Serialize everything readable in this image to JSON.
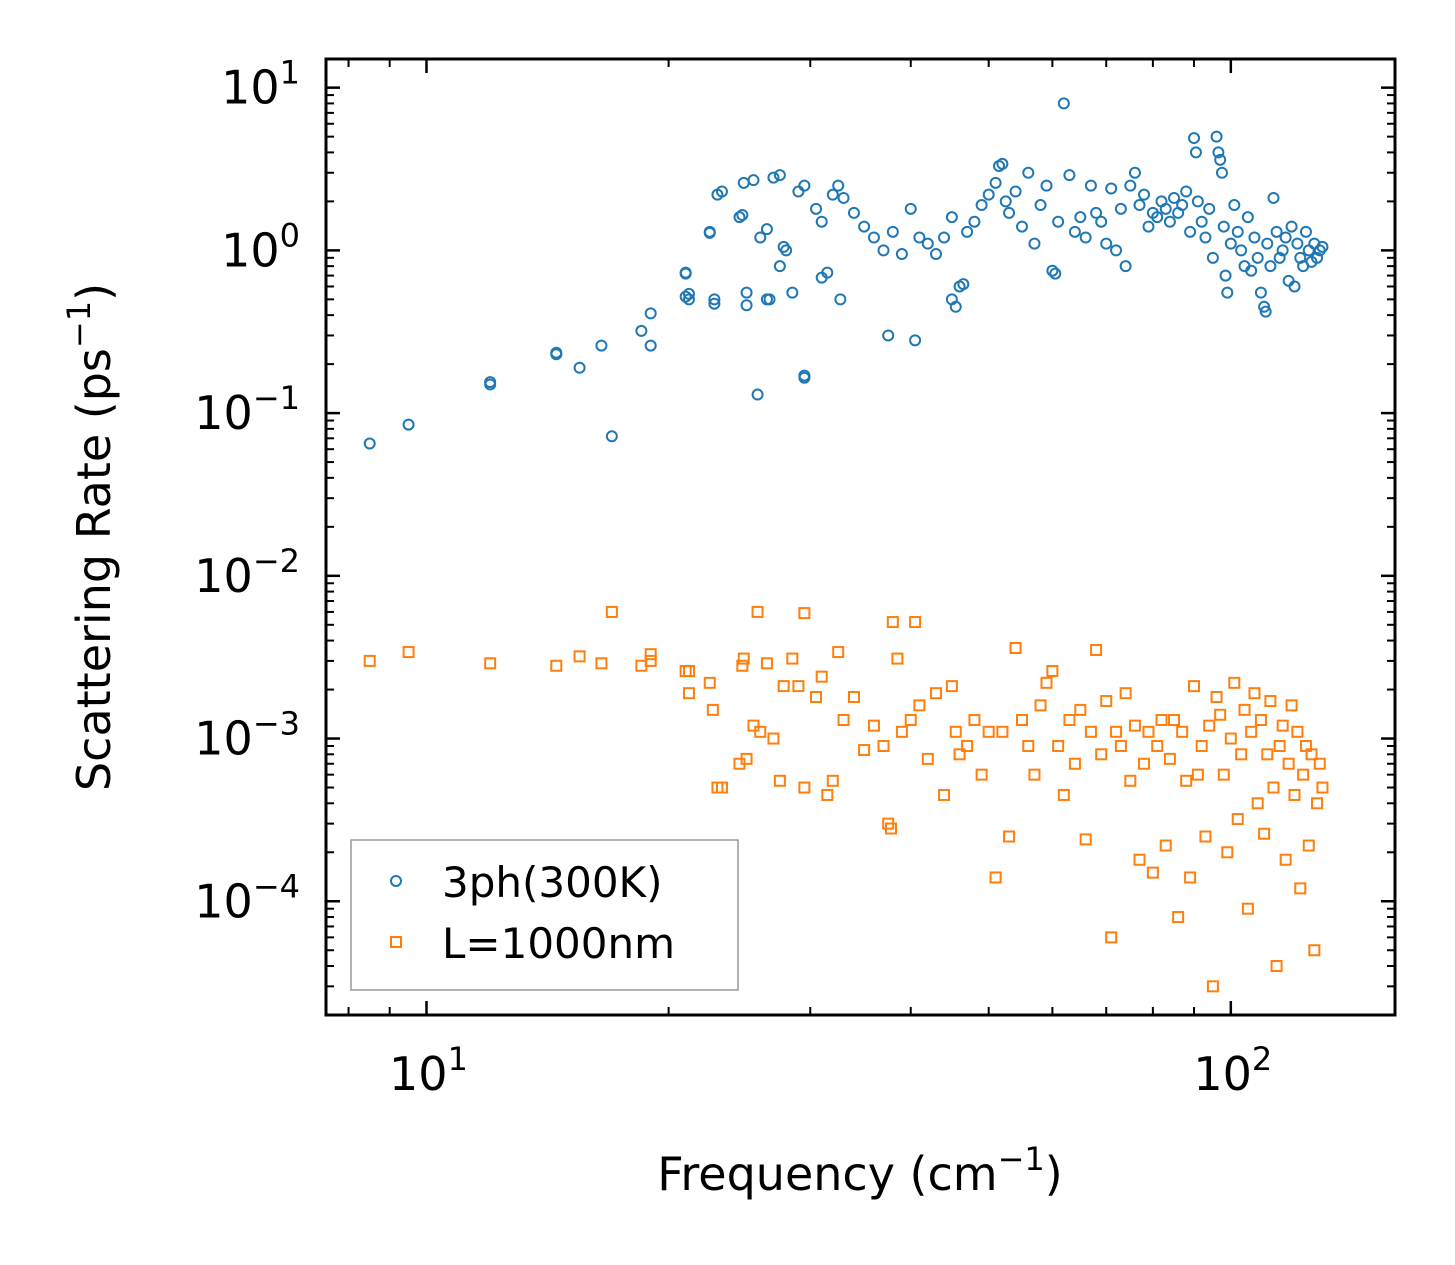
{
  "chart_data": {
    "type": "scatter",
    "xscale": "log",
    "yscale": "log",
    "xlim": [
      7.5,
      160
    ],
    "ylim": [
      2e-05,
      15
    ],
    "xlabel": "Frequency (cm",
    "xlabel_sup": "−1",
    "xlabel_end": ")",
    "ylabel": "Scattering Rate (ps",
    "ylabel_sup": "−1",
    "ylabel_end": ")",
    "x_ticks": [
      {
        "base": "10",
        "exp": "1",
        "value": 10
      },
      {
        "base": "10",
        "exp": "2",
        "value": 100
      }
    ],
    "y_ticks": [
      {
        "base": "10",
        "exp": "1",
        "value": 10
      },
      {
        "base": "10",
        "exp": "0",
        "value": 1
      },
      {
        "base": "10",
        "exp": "−1",
        "value": 0.1
      },
      {
        "base": "10",
        "exp": "−2",
        "value": 0.01
      },
      {
        "base": "10",
        "exp": "−3",
        "value": 0.001
      },
      {
        "base": "10",
        "exp": "−4",
        "value": 0.0001
      }
    ],
    "legend_position": "lower-left",
    "series": [
      {
        "name": "3ph(300K)",
        "marker": "circle",
        "color": "#1f77b4",
        "points": [
          [
            8.5,
            0.065
          ],
          [
            9.5,
            0.085
          ],
          [
            12,
            0.15
          ],
          [
            12,
            0.155
          ],
          [
            14.5,
            0.23
          ],
          [
            14.5,
            0.235
          ],
          [
            15.5,
            0.19
          ],
          [
            16.5,
            0.26
          ],
          [
            17,
            0.072
          ],
          [
            18.5,
            0.32
          ],
          [
            19,
            0.41
          ],
          [
            19,
            0.26
          ],
          [
            21,
            0.73
          ],
          [
            21,
            0.72
          ],
          [
            21,
            0.52
          ],
          [
            21.2,
            0.54
          ],
          [
            21.2,
            0.5
          ],
          [
            22.5,
            1.3
          ],
          [
            22.5,
            1.28
          ],
          [
            22.8,
            0.5
          ],
          [
            22.8,
            0.47
          ],
          [
            23,
            2.2
          ],
          [
            23.3,
            2.3
          ],
          [
            24.5,
            1.6
          ],
          [
            24.7,
            1.65
          ],
          [
            24.8,
            2.6
          ],
          [
            25,
            0.46
          ],
          [
            25,
            0.55
          ],
          [
            25.5,
            2.7
          ],
          [
            25.8,
            0.13
          ],
          [
            26,
            1.2
          ],
          [
            26.5,
            1.35
          ],
          [
            26.5,
            0.5
          ],
          [
            26.7,
            0.5
          ],
          [
            27,
            2.8
          ],
          [
            27.5,
            2.9
          ],
          [
            27.5,
            0.8
          ],
          [
            27.8,
            1.05
          ],
          [
            28,
            1.0
          ],
          [
            28.5,
            0.55
          ],
          [
            29,
            2.3
          ],
          [
            29.5,
            2.5
          ],
          [
            29.5,
            0.17
          ],
          [
            29.5,
            0.165
          ],
          [
            30.5,
            1.8
          ],
          [
            31,
            0.68
          ],
          [
            31,
            1.5
          ],
          [
            31.5,
            0.73
          ],
          [
            32,
            2.2
          ],
          [
            32.5,
            2.5
          ],
          [
            32.7,
            0.5
          ],
          [
            33,
            2.1
          ],
          [
            34,
            1.7
          ],
          [
            35,
            1.4
          ],
          [
            36,
            1.2
          ],
          [
            37,
            1.0
          ],
          [
            37.5,
            0.3
          ],
          [
            38,
            1.3
          ],
          [
            39,
            0.95
          ],
          [
            40,
            1.8
          ],
          [
            40.5,
            0.28
          ],
          [
            41,
            1.2
          ],
          [
            42,
            1.1
          ],
          [
            43,
            0.95
          ],
          [
            44,
            1.2
          ],
          [
            45,
            1.6
          ],
          [
            45,
            0.5
          ],
          [
            45.5,
            0.45
          ],
          [
            46,
            0.6
          ],
          [
            46.5,
            0.62
          ],
          [
            47,
            1.3
          ],
          [
            48,
            1.5
          ],
          [
            49,
            1.9
          ],
          [
            50,
            2.2
          ],
          [
            51,
            2.6
          ],
          [
            51.5,
            3.3
          ],
          [
            52,
            3.4
          ],
          [
            52.5,
            2.0
          ],
          [
            53,
            1.7
          ],
          [
            54,
            2.3
          ],
          [
            55,
            1.4
          ],
          [
            56,
            3.0
          ],
          [
            57,
            1.1
          ],
          [
            58,
            1.9
          ],
          [
            59,
            2.5
          ],
          [
            60,
            0.75
          ],
          [
            60.5,
            0.72
          ],
          [
            61,
            1.5
          ],
          [
            62,
            8.0
          ],
          [
            63,
            2.9
          ],
          [
            64,
            1.3
          ],
          [
            65,
            1.6
          ],
          [
            66,
            1.2
          ],
          [
            67,
            2.5
          ],
          [
            68,
            1.7
          ],
          [
            69,
            1.5
          ],
          [
            70,
            1.1
          ],
          [
            71,
            2.4
          ],
          [
            72,
            1.0
          ],
          [
            73,
            1.8
          ],
          [
            74,
            0.8
          ],
          [
            75,
            2.5
          ],
          [
            76,
            3.0
          ],
          [
            77,
            1.9
          ],
          [
            78,
            2.2
          ],
          [
            79,
            1.4
          ],
          [
            80,
            1.7
          ],
          [
            81,
            1.6
          ],
          [
            82,
            2.0
          ],
          [
            83,
            1.8
          ],
          [
            84,
            1.5
          ],
          [
            85,
            2.1
          ],
          [
            86,
            1.7
          ],
          [
            87,
            1.9
          ],
          [
            88,
            2.3
          ],
          [
            89,
            1.3
          ],
          [
            90,
            4.9
          ],
          [
            90.5,
            4.0
          ],
          [
            91,
            2.0
          ],
          [
            92,
            1.5
          ],
          [
            93,
            1.2
          ],
          [
            94,
            1.8
          ],
          [
            95,
            0.9
          ],
          [
            96,
            5.0
          ],
          [
            96.5,
            4.0
          ],
          [
            97,
            3.6
          ],
          [
            97.5,
            3.0
          ],
          [
            98,
            1.4
          ],
          [
            98.5,
            0.7
          ],
          [
            99,
            0.55
          ],
          [
            100,
            1.1
          ],
          [
            101,
            1.9
          ],
          [
            102,
            1.3
          ],
          [
            103,
            1.0
          ],
          [
            104,
            0.8
          ],
          [
            105,
            1.6
          ],
          [
            106,
            0.75
          ],
          [
            107,
            1.2
          ],
          [
            108,
            0.9
          ],
          [
            109,
            0.55
          ],
          [
            110,
            0.45
          ],
          [
            110.5,
            0.42
          ],
          [
            111,
            1.1
          ],
          [
            112,
            0.8
          ],
          [
            113,
            2.1
          ],
          [
            114,
            1.3
          ],
          [
            115,
            0.9
          ],
          [
            116,
            1.0
          ],
          [
            117,
            1.2
          ],
          [
            118,
            0.65
          ],
          [
            119,
            1.4
          ],
          [
            120,
            0.6
          ],
          [
            121,
            1.1
          ],
          [
            122,
            0.9
          ],
          [
            123,
            0.8
          ],
          [
            124,
            1.3
          ],
          [
            125,
            1.0
          ],
          [
            126,
            0.85
          ],
          [
            127,
            1.1
          ],
          [
            128,
            0.9
          ],
          [
            129,
            1.0
          ],
          [
            130,
            1.05
          ]
        ]
      },
      {
        "name": "L=1000nm",
        "marker": "square",
        "color": "#ff7f0e",
        "points": [
          [
            8.5,
            0.003
          ],
          [
            9.5,
            0.0034
          ],
          [
            12,
            0.0029
          ],
          [
            14.5,
            0.0028
          ],
          [
            15.5,
            0.0032
          ],
          [
            16.5,
            0.0029
          ],
          [
            17,
            0.006
          ],
          [
            18.5,
            0.0028
          ],
          [
            19,
            0.0033
          ],
          [
            19,
            0.003
          ],
          [
            21,
            0.0026
          ],
          [
            21.2,
            0.0026
          ],
          [
            21.2,
            0.0019
          ],
          [
            22.5,
            0.0022
          ],
          [
            22.7,
            0.0015
          ],
          [
            23,
            0.0005
          ],
          [
            23.3,
            0.0005
          ],
          [
            24.5,
            0.0007
          ],
          [
            24.7,
            0.0028
          ],
          [
            24.8,
            0.0031
          ],
          [
            25,
            0.00075
          ],
          [
            25.5,
            0.0012
          ],
          [
            25.8,
            0.006
          ],
          [
            26,
            0.0011
          ],
          [
            26.5,
            0.0029
          ],
          [
            27,
            0.001
          ],
          [
            27.5,
            0.00055
          ],
          [
            27.8,
            0.0021
          ],
          [
            28.5,
            0.0031
          ],
          [
            29,
            0.0021
          ],
          [
            29.5,
            0.0059
          ],
          [
            29.5,
            0.0005
          ],
          [
            30.5,
            0.0018
          ],
          [
            31,
            0.0024
          ],
          [
            31.5,
            0.00045
          ],
          [
            32,
            0.00055
          ],
          [
            32.5,
            0.0034
          ],
          [
            33,
            0.0013
          ],
          [
            34,
            0.0018
          ],
          [
            35,
            0.00085
          ],
          [
            36,
            0.0012
          ],
          [
            37,
            0.0009
          ],
          [
            37.5,
            0.0003
          ],
          [
            37.8,
            0.00028
          ],
          [
            38,
            0.0052
          ],
          [
            38.5,
            0.0031
          ],
          [
            39,
            0.0011
          ],
          [
            40,
            0.0013
          ],
          [
            40.5,
            0.0052
          ],
          [
            41,
            0.0016
          ],
          [
            42,
            0.00075
          ],
          [
            43,
            0.0019
          ],
          [
            44,
            0.00045
          ],
          [
            45,
            0.0021
          ],
          [
            45.5,
            0.0011
          ],
          [
            46,
            0.0008
          ],
          [
            47,
            0.0009
          ],
          [
            48,
            0.0013
          ],
          [
            49,
            0.0006
          ],
          [
            50,
            0.0011
          ],
          [
            51,
            0.00014
          ],
          [
            52,
            0.0011
          ],
          [
            53,
            0.00025
          ],
          [
            54,
            0.0036
          ],
          [
            55,
            0.0013
          ],
          [
            56,
            0.0009
          ],
          [
            57,
            0.0006
          ],
          [
            58,
            0.0016
          ],
          [
            59,
            0.0022
          ],
          [
            60,
            0.0026
          ],
          [
            61,
            0.0009
          ],
          [
            62,
            0.00045
          ],
          [
            63,
            0.0013
          ],
          [
            64,
            0.0007
          ],
          [
            65,
            0.0015
          ],
          [
            66,
            0.00024
          ],
          [
            67,
            0.0011
          ],
          [
            68,
            0.0035
          ],
          [
            69,
            0.0008
          ],
          [
            70,
            0.0017
          ],
          [
            71,
            6e-05
          ],
          [
            72,
            0.0011
          ],
          [
            73,
            0.0009
          ],
          [
            74,
            0.0019
          ],
          [
            75,
            0.00055
          ],
          [
            76,
            0.0012
          ],
          [
            77,
            0.00018
          ],
          [
            78,
            0.0007
          ],
          [
            79,
            0.0011
          ],
          [
            80,
            0.00015
          ],
          [
            81,
            0.0009
          ],
          [
            82,
            0.0013
          ],
          [
            83,
            0.00022
          ],
          [
            84,
            0.00075
          ],
          [
            85,
            0.0013
          ],
          [
            86,
            8e-05
          ],
          [
            87,
            0.0011
          ],
          [
            88,
            0.00055
          ],
          [
            89,
            0.00014
          ],
          [
            90,
            0.0021
          ],
          [
            91,
            0.0006
          ],
          [
            92,
            0.0009
          ],
          [
            93,
            0.00025
          ],
          [
            94,
            0.0012
          ],
          [
            95,
            3e-05
          ],
          [
            96,
            0.0018
          ],
          [
            97,
            0.0014
          ],
          [
            98,
            0.0006
          ],
          [
            99,
            0.0002
          ],
          [
            100,
            0.001
          ],
          [
            101,
            0.0022
          ],
          [
            102,
            0.00032
          ],
          [
            103,
            0.0008
          ],
          [
            104,
            0.0015
          ],
          [
            105,
            9e-05
          ],
          [
            106,
            0.0011
          ],
          [
            107,
            0.0019
          ],
          [
            108,
            0.0004
          ],
          [
            109,
            0.0013
          ],
          [
            110,
            0.00026
          ],
          [
            111,
            0.0008
          ],
          [
            112,
            0.0017
          ],
          [
            113,
            0.0005
          ],
          [
            114,
            4e-05
          ],
          [
            115,
            0.0009
          ],
          [
            116,
            0.0012
          ],
          [
            117,
            0.00018
          ],
          [
            118,
            0.0007
          ],
          [
            119,
            0.0016
          ],
          [
            120,
            0.00045
          ],
          [
            121,
            0.0011
          ],
          [
            122,
            0.00012
          ],
          [
            123,
            0.0006
          ],
          [
            124,
            0.0009
          ],
          [
            125,
            0.00022
          ],
          [
            126,
            0.0008
          ],
          [
            127,
            5e-05
          ],
          [
            128,
            0.0004
          ],
          [
            129,
            0.0007
          ],
          [
            130,
            0.0005
          ]
        ]
      }
    ]
  }
}
